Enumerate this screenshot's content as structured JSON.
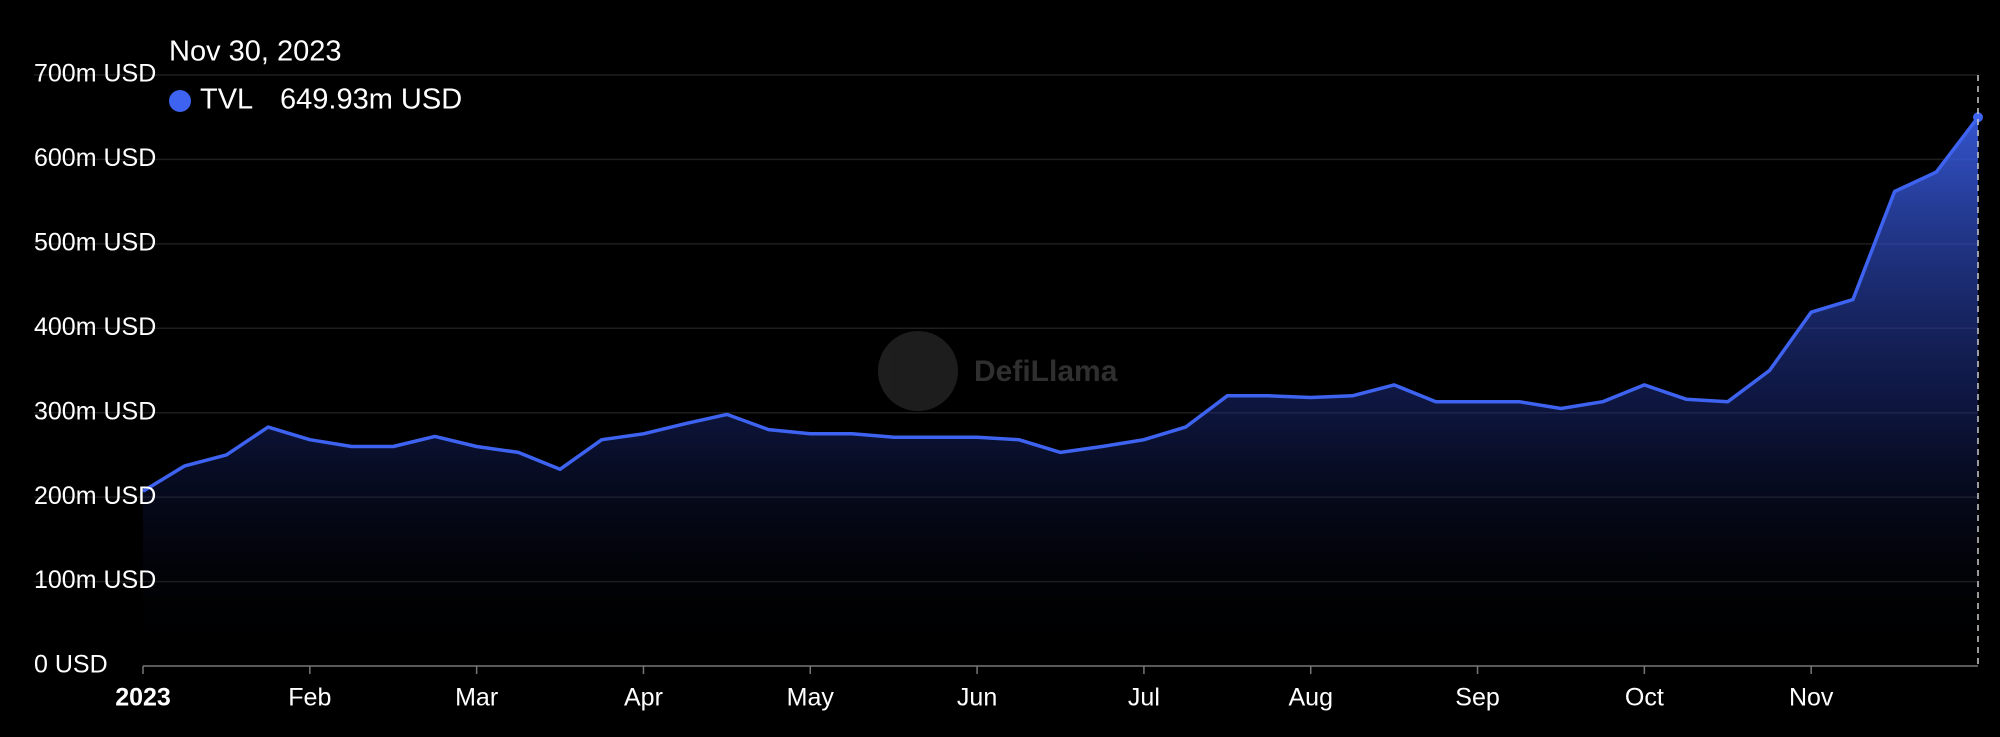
{
  "chart_data": {
    "type": "area",
    "categories": [
      "2023",
      null,
      null,
      null,
      "Feb",
      null,
      null,
      null,
      "Mar",
      null,
      null,
      null,
      "Apr",
      null,
      null,
      null,
      "May",
      null,
      null,
      null,
      "Jun",
      null,
      null,
      null,
      "Jul",
      null,
      null,
      null,
      "Aug",
      null,
      null,
      null,
      "Sep",
      null,
      null,
      null,
      "Oct",
      null,
      null,
      null,
      "Nov",
      null,
      null,
      null,
      null
    ],
    "series": [
      {
        "name": "TVL",
        "color": "#3d63f0",
        "values": [
          207,
          237,
          250,
          283,
          268,
          260,
          260,
          272,
          260,
          253,
          233,
          268,
          275,
          287,
          298,
          280,
          275,
          275,
          271,
          271,
          271,
          268,
          253,
          260,
          268,
          283,
          320,
          320,
          318,
          320,
          333,
          313,
          313,
          313,
          305,
          313,
          333,
          316,
          313,
          350,
          419,
          434,
          562,
          585,
          649.93
        ]
      }
    ],
    "ylim": [
      0,
      700
    ],
    "yticks": [
      {
        "value": 0,
        "label": "0 USD"
      },
      {
        "value": 100,
        "label": "100m USD"
      },
      {
        "value": 200,
        "label": "200m USD"
      },
      {
        "value": 300,
        "label": "300m USD"
      },
      {
        "value": 400,
        "label": "400m USD"
      },
      {
        "value": 500,
        "label": "500m USD"
      },
      {
        "value": 600,
        "label": "600m USD"
      },
      {
        "value": 700,
        "label": "700m USD"
      }
    ],
    "grid": true,
    "tooltip": {
      "date": "Nov 30, 2023",
      "value": 649.93,
      "value_label": "649.93m USD"
    },
    "watermark": "DefiLlama"
  }
}
